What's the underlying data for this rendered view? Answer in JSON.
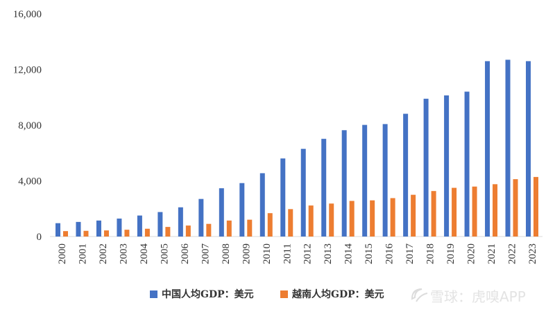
{
  "chart_data": {
    "type": "bar",
    "title": "",
    "xlabel": "",
    "ylabel": "",
    "ylim": [
      0,
      16000
    ],
    "y_ticks": [
      "0",
      "4,000",
      "8,000",
      "12,000",
      "16,000"
    ],
    "y_tick_values": [
      0,
      4000,
      8000,
      12000,
      16000
    ],
    "categories": [
      "2000",
      "2001",
      "2002",
      "2003",
      "2004",
      "2005",
      "2006",
      "2007",
      "2008",
      "2009",
      "2010",
      "2011",
      "2012",
      "2013",
      "2014",
      "2015",
      "2016",
      "2017",
      "2018",
      "2019",
      "2020",
      "2021",
      "2022",
      "2023"
    ],
    "series": [
      {
        "name": "中国人均GDP：美元",
        "color": "#4472c4",
        "values": [
          960,
          1050,
          1150,
          1290,
          1510,
          1760,
          2100,
          2700,
          3470,
          3840,
          4550,
          5610,
          6300,
          7020,
          7640,
          8020,
          8080,
          8820,
          9900,
          10140,
          10410,
          12600,
          12700,
          12600
        ]
      },
      {
        "name": "越南人均GDP：美元",
        "color": "#ed7d31",
        "values": [
          390,
          410,
          440,
          490,
          560,
          690,
          790,
          910,
          1150,
          1210,
          1680,
          1970,
          2230,
          2370,
          2560,
          2600,
          2760,
          3000,
          3270,
          3500,
          3590,
          3760,
          4120,
          4280
        ]
      }
    ],
    "legend_position": "bottom",
    "grid": false
  },
  "watermark": {
    "text": "雪球：虎嗅APP",
    "icon": "xueqiu-logo-icon"
  }
}
